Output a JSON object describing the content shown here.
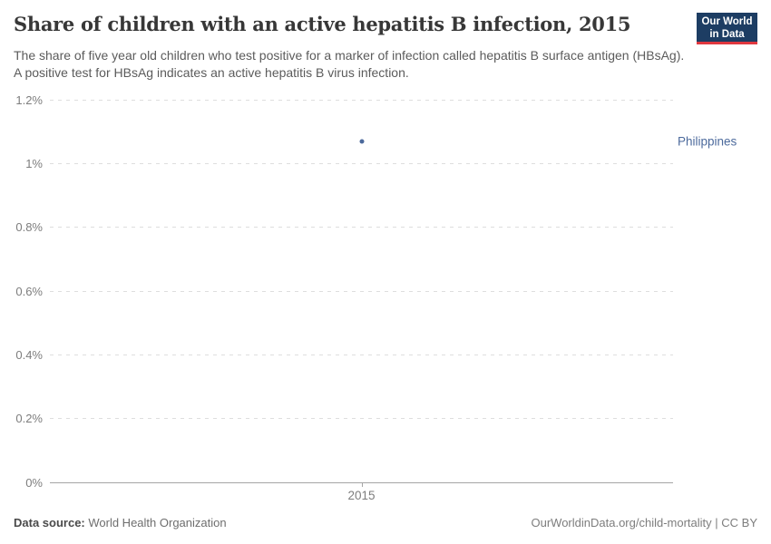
{
  "header": {
    "title": "Share of children with an active hepatitis B infection, 2015",
    "subtitle": "The share of five year old children who test positive for a marker of infection called hepatitis B surface antigen (HBsAg). A positive test for HBsAg indicates an active hepatitis B virus infection.",
    "logo": {
      "line1": "Our World",
      "line2": "in Data",
      "background_color": "#1d3d63",
      "accent_color": "#e0373f"
    }
  },
  "chart_data": {
    "type": "scatter",
    "x": [
      2015
    ],
    "series": [
      {
        "name": "Philippines",
        "values": [
          1.07
        ],
        "color": "#4c6a9c"
      }
    ],
    "title": "Share of children with an active hepatitis B infection, 2015",
    "xlabel": "",
    "ylabel": "",
    "ylim": [
      0,
      1.2
    ],
    "yticks": [
      {
        "value": 0,
        "label": "0%"
      },
      {
        "value": 0.2,
        "label": "0.2%"
      },
      {
        "value": 0.4,
        "label": "0.4%"
      },
      {
        "value": 0.6,
        "label": "0.6%"
      },
      {
        "value": 0.8,
        "label": "0.8%"
      },
      {
        "value": 1,
        "label": "1%"
      },
      {
        "value": 1.2,
        "label": "1.2%"
      }
    ],
    "xticks": [
      {
        "value": 2015,
        "label": "2015"
      }
    ],
    "grid": "horizontal dashed",
    "gridline_color": "#dedede",
    "axis_color": "#a5a5a5",
    "legend_position": "entity label right of plot"
  },
  "footer": {
    "source_label": "Data source:",
    "source_value": " World Health Organization",
    "attribution": "OurWorldinData.org/child-mortality | CC BY"
  }
}
